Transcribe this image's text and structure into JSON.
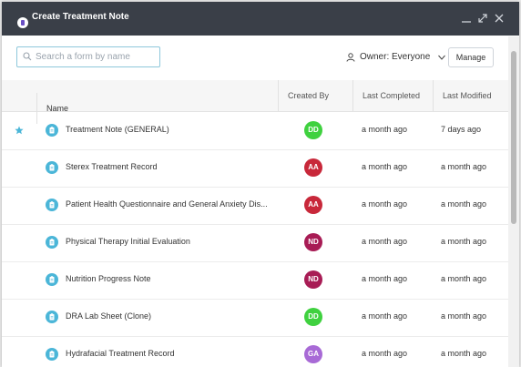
{
  "dialog": {
    "title": "Create Treatment Note"
  },
  "search": {
    "placeholder": "Search a form by name",
    "value": ""
  },
  "filter": {
    "owner_label": "Owner: Everyone"
  },
  "toolbar": {
    "manage_label": "Manage"
  },
  "table": {
    "columns": [
      "Name",
      "Created By",
      "Last Completed",
      "Last Modified"
    ],
    "rows": [
      {
        "starred": true,
        "name": "Treatment Note (GENERAL)",
        "creator": "DD",
        "creator_color": "#3fd13f",
        "last_completed": "a month ago",
        "last_modified": "7 days ago"
      },
      {
        "starred": false,
        "name": "Sterex Treatment Record",
        "creator": "AA",
        "creator_color": "#c8283a",
        "last_completed": "a month ago",
        "last_modified": "a month ago"
      },
      {
        "starred": false,
        "name": "Patient Health Questionnaire and General Anxiety Dis...",
        "creator": "AA",
        "creator_color": "#c8283a",
        "last_completed": "a month ago",
        "last_modified": "a month ago"
      },
      {
        "starred": false,
        "name": "Physical Therapy Initial Evaluation",
        "creator": "ND",
        "creator_color": "#a81c55",
        "last_completed": "a month ago",
        "last_modified": "a month ago"
      },
      {
        "starred": false,
        "name": "Nutrition Progress Note",
        "creator": "ND",
        "creator_color": "#a81c55",
        "last_completed": "a month ago",
        "last_modified": "a month ago"
      },
      {
        "starred": false,
        "name": "DRA Lab Sheet (Clone)",
        "creator": "DD",
        "creator_color": "#3fd13f",
        "last_completed": "a month ago",
        "last_modified": "a month ago"
      },
      {
        "starred": false,
        "name": "Hydrafacial Treatment Record",
        "creator": "GA",
        "creator_color": "#a86ad6",
        "last_completed": "a month ago",
        "last_modified": "a month ago"
      }
    ]
  },
  "colors": {
    "titlebar": "#3a3f48",
    "accent": "#4bb6d8",
    "star": "#4bb6d8"
  }
}
